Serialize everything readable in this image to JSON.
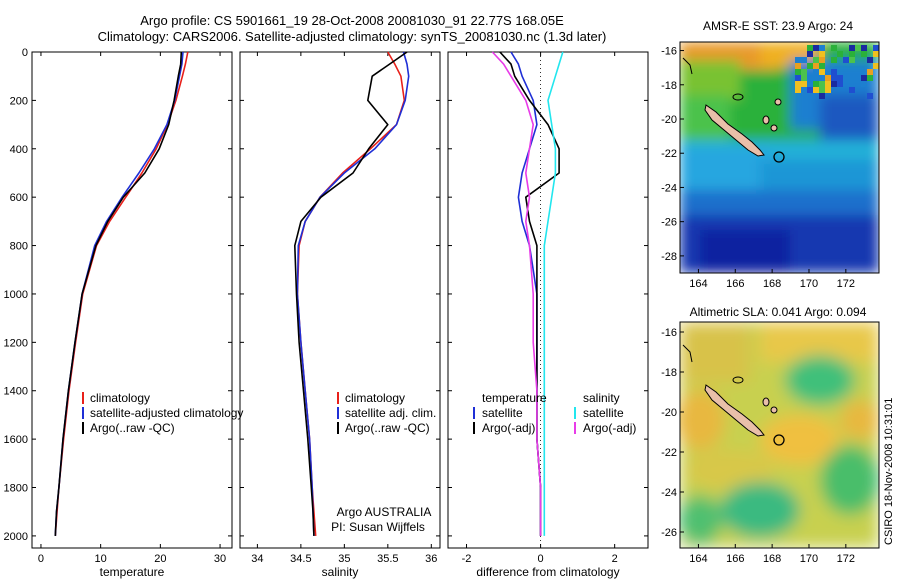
{
  "header": {
    "line1": "Argo profile: CS 5901661_19 28-Oct-2008 20081030_91 22.77S 168.05E",
    "line2": "Climatology: CARS2006. Satellite-adjusted climatology: synTS_20081030.nc (1.3d later)"
  },
  "colors": {
    "climatology": "#e8201a",
    "satellite": "#1f2fd6",
    "argo": "#000000",
    "sat_salinity": "#22e6ee",
    "argo_salinity": "#e83ce8"
  },
  "chart_data": [
    {
      "type": "line",
      "name": "temperature-profile",
      "xlabel": "temperature",
      "ylabel": "",
      "xlim": [
        -1.5,
        32
      ],
      "ylim": [
        2050,
        0
      ],
      "xticks": [
        0,
        10,
        20,
        30
      ],
      "yticks": [
        0,
        200,
        400,
        600,
        800,
        1000,
        1200,
        1400,
        1600,
        1800,
        2000
      ],
      "legend": [
        "climatology",
        "satellite-adjusted climatology",
        "Argo(..raw -QC)"
      ],
      "series": [
        {
          "name": "climatology",
          "color": "#e8201a",
          "x": [
            24.6,
            24.2,
            23.7,
            22.6,
            21.2,
            19.3,
            16.9,
            14.2,
            11.5,
            9.3,
            7.0,
            5.8,
            4.7,
            3.8,
            3.0,
            2.7,
            2.4
          ],
          "y": [
            0,
            50,
            100,
            200,
            300,
            400,
            500,
            600,
            700,
            800,
            1000,
            1200,
            1400,
            1600,
            1800,
            1900,
            2000
          ]
        },
        {
          "name": "satellite",
          "color": "#1f2fd6",
          "x": [
            23.8,
            23.6,
            23.2,
            22.4,
            21.1,
            19.0,
            16.4,
            13.6,
            11.0,
            9.0,
            6.9,
            5.7,
            4.6,
            3.7,
            3.0,
            2.6,
            2.4
          ],
          "y": [
            0,
            50,
            100,
            200,
            300,
            400,
            500,
            600,
            700,
            800,
            1000,
            1200,
            1400,
            1600,
            1800,
            1900,
            2000
          ]
        },
        {
          "name": "argo",
          "color": "#000000",
          "x": [
            23.5,
            23.4,
            23.0,
            22.3,
            21.4,
            19.8,
            17.4,
            13.8,
            11.2,
            9.2,
            6.9,
            5.7,
            4.6,
            3.7,
            3.0,
            2.6,
            2.4
          ],
          "y": [
            0,
            50,
            100,
            200,
            300,
            400,
            500,
            600,
            700,
            800,
            1000,
            1200,
            1400,
            1600,
            1800,
            1900,
            2000
          ]
        }
      ]
    },
    {
      "type": "line",
      "name": "salinity-profile",
      "xlabel": "salinity",
      "xlim": [
        33.8,
        36.1
      ],
      "ylim": [
        2050,
        0
      ],
      "xticks": [
        34,
        34.5,
        35,
        35.5,
        36
      ],
      "legend": [
        "climatology",
        "satellite adj. clim.",
        "Argo(..raw -QC)"
      ],
      "annotations": [
        "Argo AUSTRALIA",
        "PI: Susan Wijffels"
      ],
      "series": [
        {
          "name": "climatology",
          "color": "#e8201a",
          "x": [
            35.5,
            35.58,
            35.65,
            35.69,
            35.6,
            35.3,
            34.98,
            34.72,
            34.55,
            34.48,
            34.46,
            34.5,
            34.55,
            34.6,
            34.63,
            34.65,
            34.67
          ],
          "y": [
            0,
            50,
            100,
            200,
            300,
            400,
            500,
            600,
            700,
            800,
            1000,
            1200,
            1400,
            1600,
            1800,
            1900,
            2000
          ]
        },
        {
          "name": "satellite",
          "color": "#1f2fd6",
          "x": [
            35.68,
            35.72,
            35.74,
            35.7,
            35.6,
            35.35,
            35.0,
            34.72,
            34.55,
            34.47,
            34.46,
            34.5,
            34.55,
            34.6,
            34.63,
            34.64,
            34.65
          ],
          "y": [
            0,
            50,
            100,
            200,
            300,
            400,
            500,
            600,
            700,
            800,
            1000,
            1200,
            1400,
            1600,
            1800,
            1900,
            2000
          ]
        },
        {
          "name": "argo",
          "color": "#000000",
          "x": [
            35.72,
            35.52,
            35.32,
            35.27,
            35.5,
            35.28,
            35.1,
            34.73,
            34.5,
            34.43,
            34.45,
            34.48,
            34.53,
            34.58,
            34.62,
            34.64,
            34.65
          ],
          "y": [
            0,
            50,
            100,
            200,
            300,
            400,
            500,
            600,
            700,
            800,
            1000,
            1200,
            1400,
            1600,
            1800,
            1900,
            2000
          ]
        }
      ]
    },
    {
      "type": "line",
      "name": "difference-profile",
      "xlabel": "difference from climatology",
      "xlim": [
        -2.5,
        2.9
      ],
      "ylim": [
        2050,
        0
      ],
      "xticks": [
        -2,
        0,
        2
      ],
      "legend": [
        "temperature",
        "satellite",
        "Argo(-adj)",
        "salinity",
        "satellite",
        "Argo(-adj)"
      ],
      "series": [
        {
          "name": "temperature satellite",
          "color": "#1f2fd6",
          "x": [
            -0.8,
            -0.6,
            -0.5,
            -0.2,
            -0.1,
            -0.3,
            -0.5,
            -0.6,
            -0.5,
            -0.3,
            -0.1,
            -0.1,
            -0.1,
            -0.1,
            0.0,
            0.0,
            0.0
          ],
          "y": [
            0,
            50,
            100,
            200,
            300,
            400,
            500,
            600,
            700,
            800,
            1000,
            1200,
            1400,
            1600,
            1800,
            1900,
            2000
          ]
        },
        {
          "name": "temperature argo",
          "color": "#000000",
          "x": [
            -1.1,
            -0.8,
            -0.7,
            -0.3,
            0.2,
            0.5,
            0.5,
            -0.4,
            -0.3,
            -0.1,
            -0.1,
            -0.1,
            -0.1,
            -0.1,
            0.0,
            0.0,
            0.0
          ],
          "y": [
            0,
            50,
            100,
            200,
            300,
            400,
            500,
            600,
            700,
            800,
            1000,
            1200,
            1400,
            1600,
            1800,
            1900,
            2000
          ]
        },
        {
          "name": "salinity satellite",
          "color": "#22e6ee",
          "x": [
            0.6,
            0.5,
            0.4,
            0.2,
            0.3,
            0.4,
            0.4,
            0.3,
            0.2,
            0.1,
            0.1,
            0.1,
            0.1,
            0.1,
            0.1,
            0.1,
            0.1
          ],
          "y": [
            0,
            50,
            100,
            200,
            300,
            400,
            500,
            600,
            700,
            800,
            1000,
            1200,
            1400,
            1600,
            1800,
            1900,
            2000
          ]
        },
        {
          "name": "salinity argo",
          "color": "#e83ce8",
          "x": [
            -1.3,
            -1.0,
            -0.8,
            -0.4,
            -0.2,
            -0.3,
            -0.4,
            -0.3,
            -0.4,
            -0.3,
            -0.2,
            -0.2,
            -0.1,
            -0.1,
            0.0,
            0.0,
            0.0
          ],
          "y": [
            0,
            50,
            100,
            200,
            300,
            400,
            500,
            600,
            700,
            800,
            1000,
            1200,
            1400,
            1600,
            1800,
            1900,
            2000
          ]
        }
      ]
    },
    {
      "type": "heatmap",
      "name": "sst-map",
      "title": "AMSR-E SST: 23.9 Argo: 24",
      "xlim": [
        163,
        173.8
      ],
      "ylim": [
        -29,
        -15.5
      ],
      "xticks": [
        164,
        166,
        168,
        170,
        172
      ],
      "yticks": [
        -16,
        -18,
        -20,
        -22,
        -24,
        -26,
        -28
      ],
      "marker": {
        "lon": 168.05,
        "lat": -22.77
      }
    },
    {
      "type": "heatmap",
      "name": "sla-map",
      "title": "Altimetric SLA: 0.041 Argo: 0.094",
      "xlim": [
        163,
        173.8
      ],
      "ylim": [
        -26.8,
        -15.5
      ],
      "xticks": [
        164,
        166,
        168,
        170,
        172
      ],
      "yticks": [
        -16,
        -18,
        -20,
        -22,
        -24,
        -26
      ],
      "marker": {
        "lon": 168.05,
        "lat": -22.77
      }
    }
  ],
  "footer": {
    "stamp": "CSIRO 18-Nov-2008 10:31:01"
  }
}
